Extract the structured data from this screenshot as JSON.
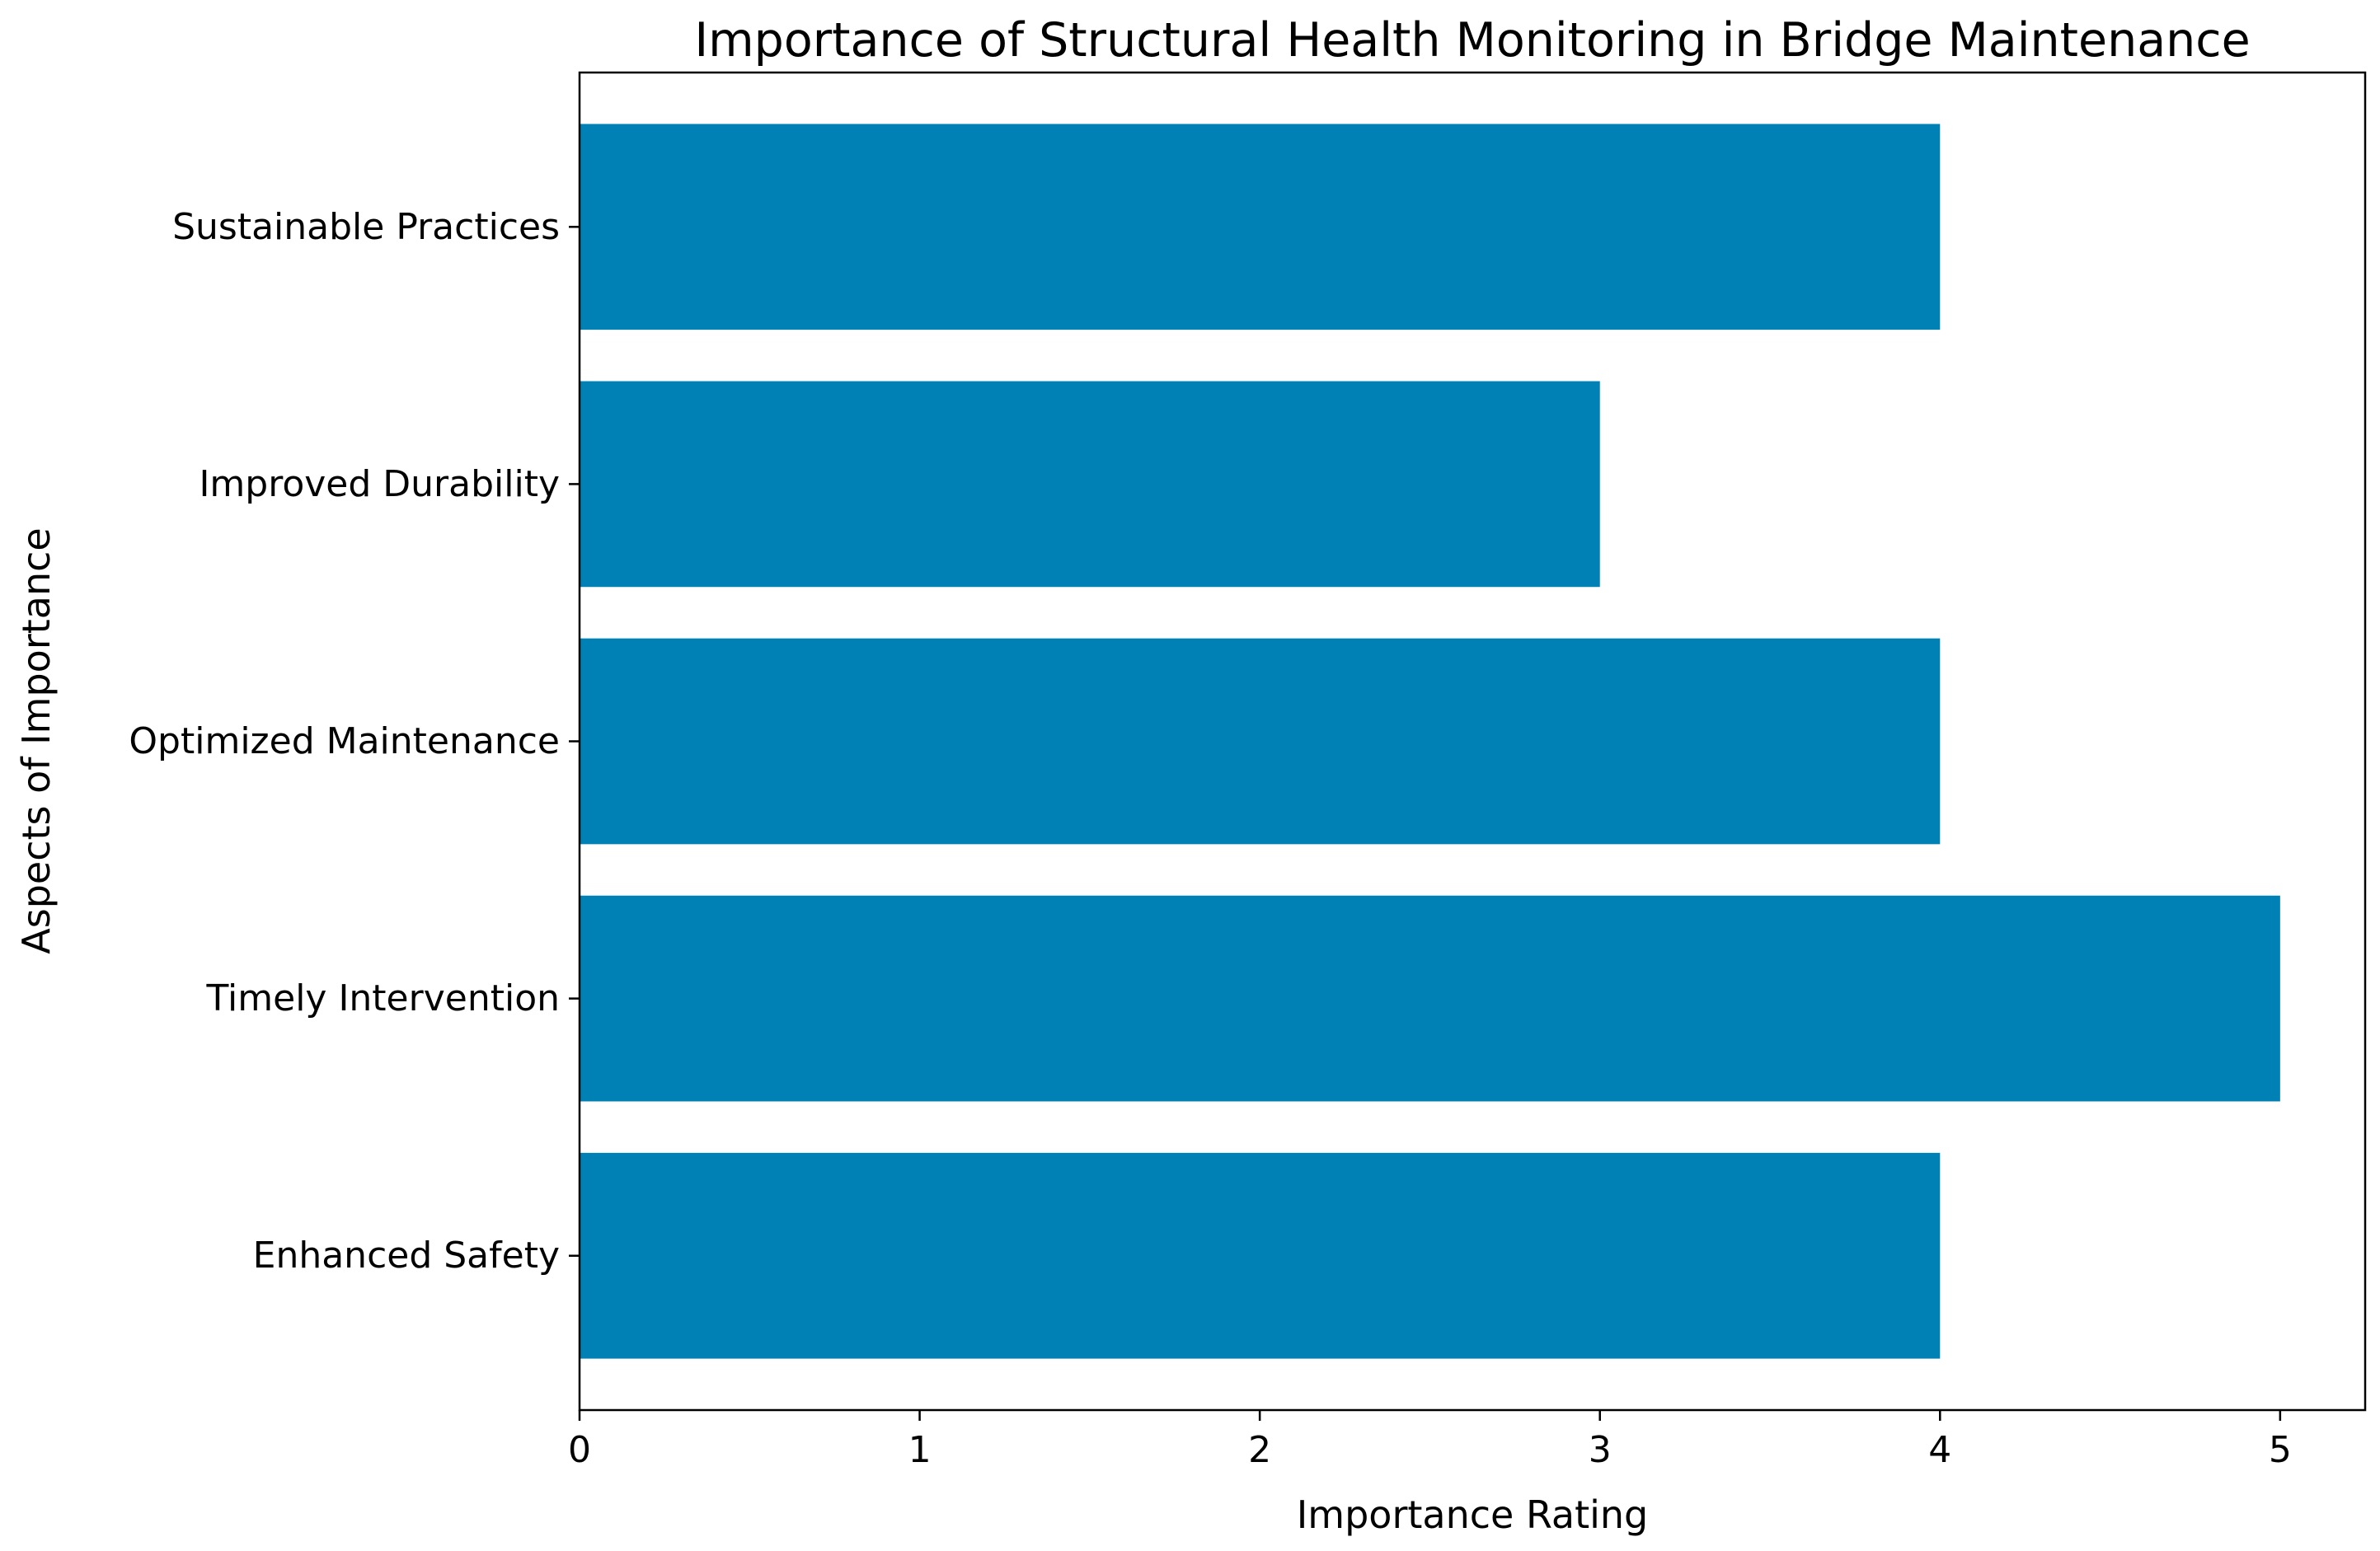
{
  "chart_data": {
    "type": "bar",
    "orientation": "horizontal",
    "title": "Importance of Structural Health Monitoring in Bridge Maintenance",
    "xlabel": "Importance Rating",
    "ylabel": "Aspects of Importance",
    "categories": [
      "Enhanced Safety",
      "Timely Intervention",
      "Optimized Maintenance",
      "Improved Durability",
      "Sustainable Practices"
    ],
    "values": [
      4,
      5,
      4,
      3,
      4
    ],
    "xlim": [
      0,
      5.25
    ],
    "xticks": [
      "0",
      "1",
      "2",
      "3",
      "4",
      "5"
    ],
    "grid": false,
    "legend": "none",
    "bar_color": "#0081b6"
  }
}
